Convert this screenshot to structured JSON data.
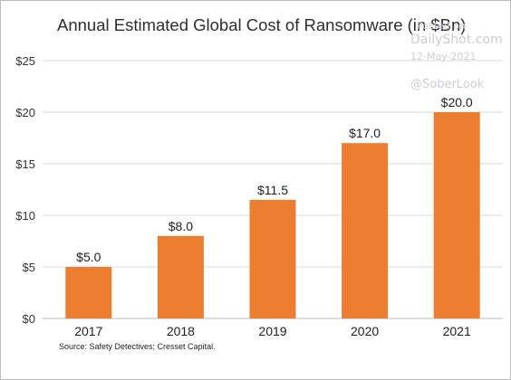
{
  "chart_data": {
    "type": "bar",
    "title": "Annual Estimated Global Cost of Ransomware (in $Bn)",
    "categories": [
      "2017",
      "2018",
      "2019",
      "2020",
      "2021"
    ],
    "values": [
      5.0,
      8.0,
      11.5,
      17.0,
      20.0
    ],
    "data_labels": [
      "$5.0",
      "$8.0",
      "$11.5",
      "$17.0",
      "$20.0"
    ],
    "y_ticks": [
      0,
      5,
      10,
      15,
      20,
      25
    ],
    "y_tick_labels": [
      "$0",
      "$5",
      "$10",
      "$15",
      "$20",
      "$25"
    ],
    "ylim": [
      0,
      25
    ],
    "xlabel": "",
    "ylabel": "",
    "grid": true,
    "bar_color": "#ED7D31",
    "source": "Source: Safety Detectives; Cresset Capital."
  },
  "watermark": {
    "posted": "Posted on",
    "site": "DailyShot.com",
    "date": "12-May-2021",
    "handle": "@SoberLook"
  }
}
